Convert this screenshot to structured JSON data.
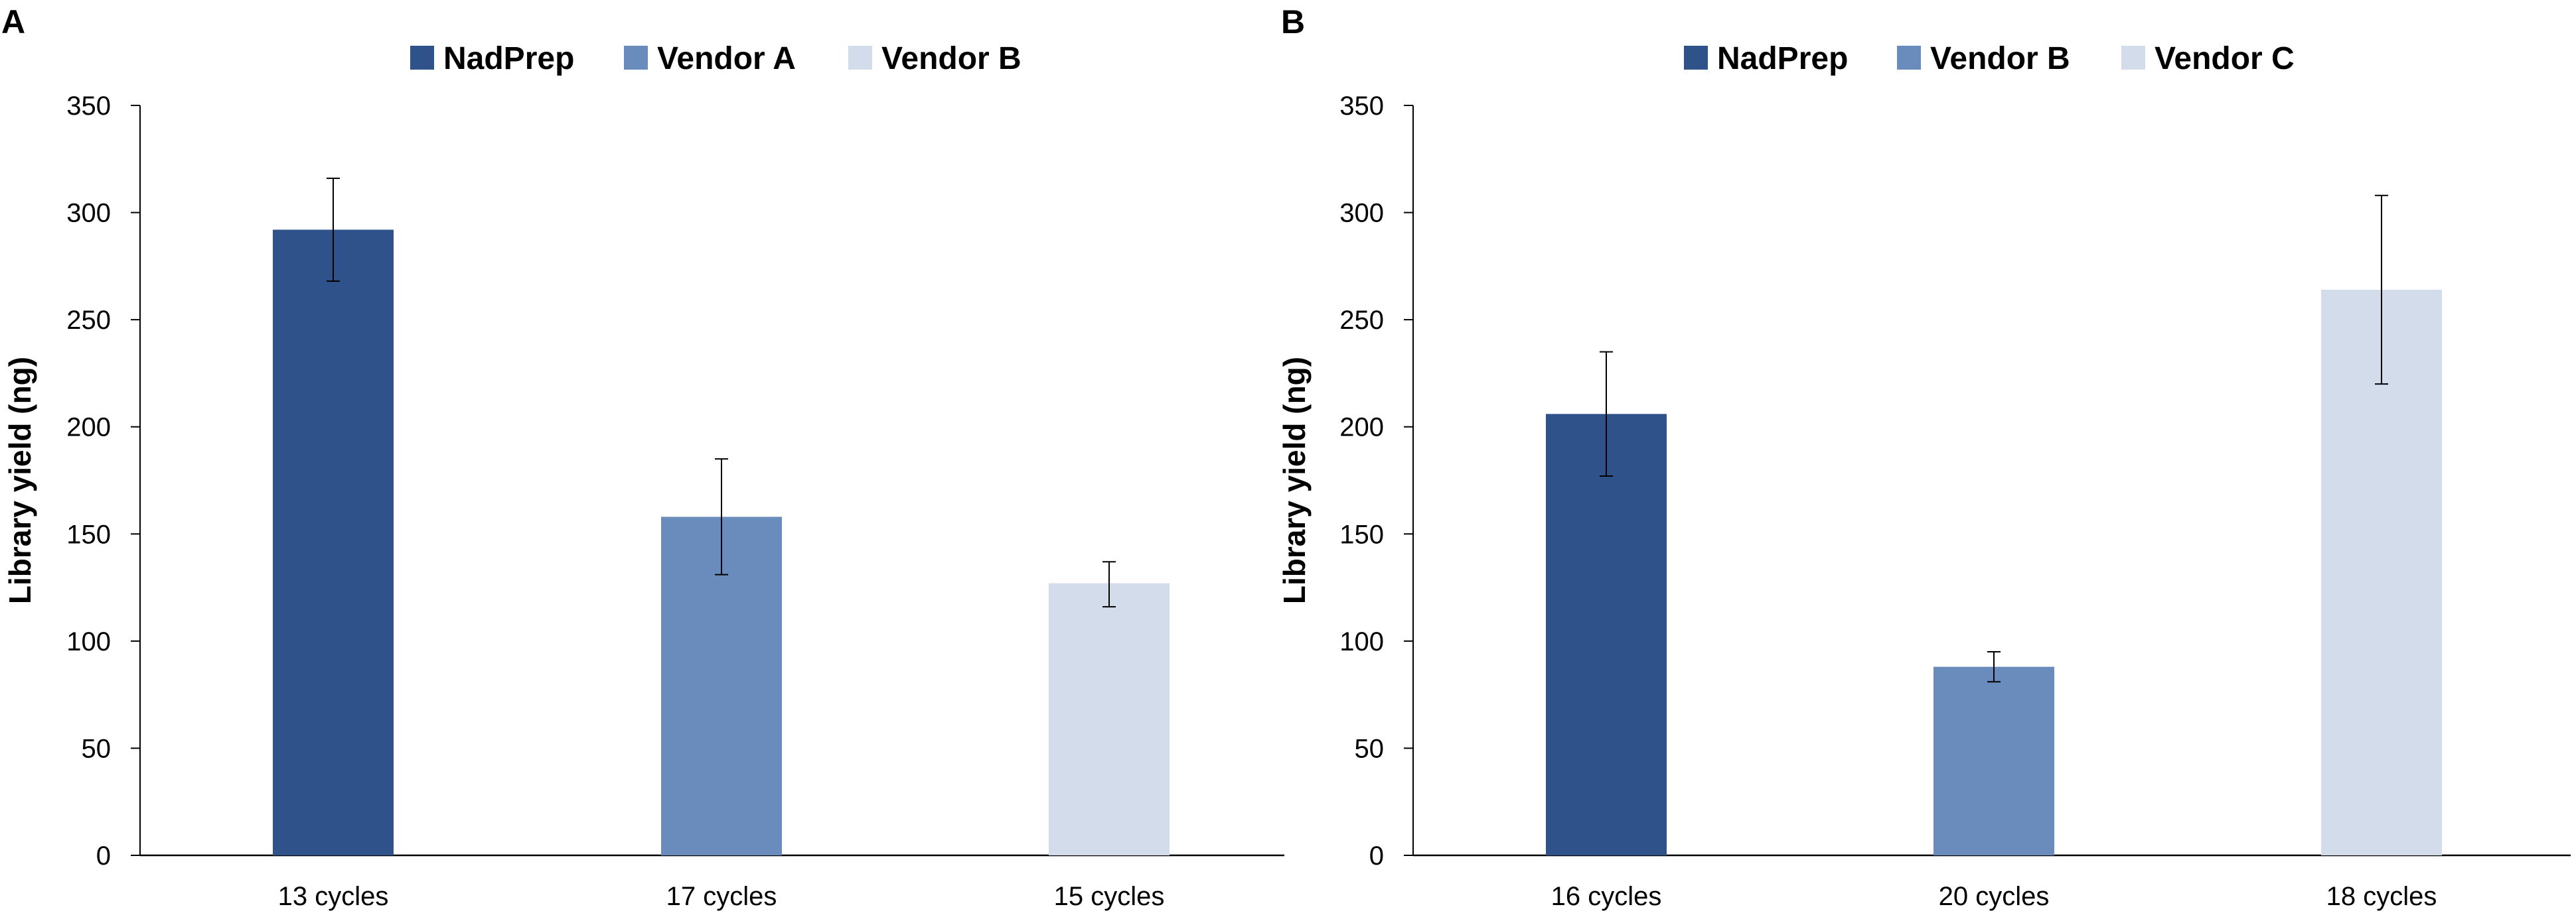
{
  "chart_data": [
    {
      "type": "bar",
      "panel_label": "A",
      "ylabel": "Library yield (ng)",
      "xlabel": "",
      "ylim": [
        0,
        350
      ],
      "yticks": [
        0,
        50,
        100,
        150,
        200,
        250,
        300,
        350
      ],
      "legend_position": "top-center",
      "categories": [
        "13  cycles",
        "17 cycles",
        "15 cycles"
      ],
      "series": [
        {
          "name": "NadPrep",
          "color": "#2f528b",
          "value": 292,
          "error_low": 268,
          "error_high": 316
        },
        {
          "name": "Vendor A",
          "color": "#6a8cbc",
          "value": 158,
          "error_low": 131,
          "error_high": 185
        },
        {
          "name": "Vendor B",
          "color": "#d3dcea",
          "value": 127,
          "error_low": 116,
          "error_high": 137
        }
      ],
      "grid": false
    },
    {
      "type": "bar",
      "panel_label": "B",
      "ylabel": "Library yield (ng)",
      "xlabel": "",
      "ylim": [
        0,
        350
      ],
      "yticks": [
        0,
        50,
        100,
        150,
        200,
        250,
        300,
        350
      ],
      "legend_position": "top-center",
      "categories": [
        "16  cycles",
        "20 cycles",
        "18 cycles"
      ],
      "series": [
        {
          "name": "NadPrep",
          "color": "#2f528b",
          "value": 206,
          "error_low": 177,
          "error_high": 235
        },
        {
          "name": "Vendor B",
          "color": "#6a8cbc",
          "value": 88,
          "error_low": 81,
          "error_high": 95
        },
        {
          "name": "Vendor C",
          "color": "#d3dcea",
          "value": 264,
          "error_low": 220,
          "error_high": 308
        }
      ],
      "grid": false
    }
  ]
}
